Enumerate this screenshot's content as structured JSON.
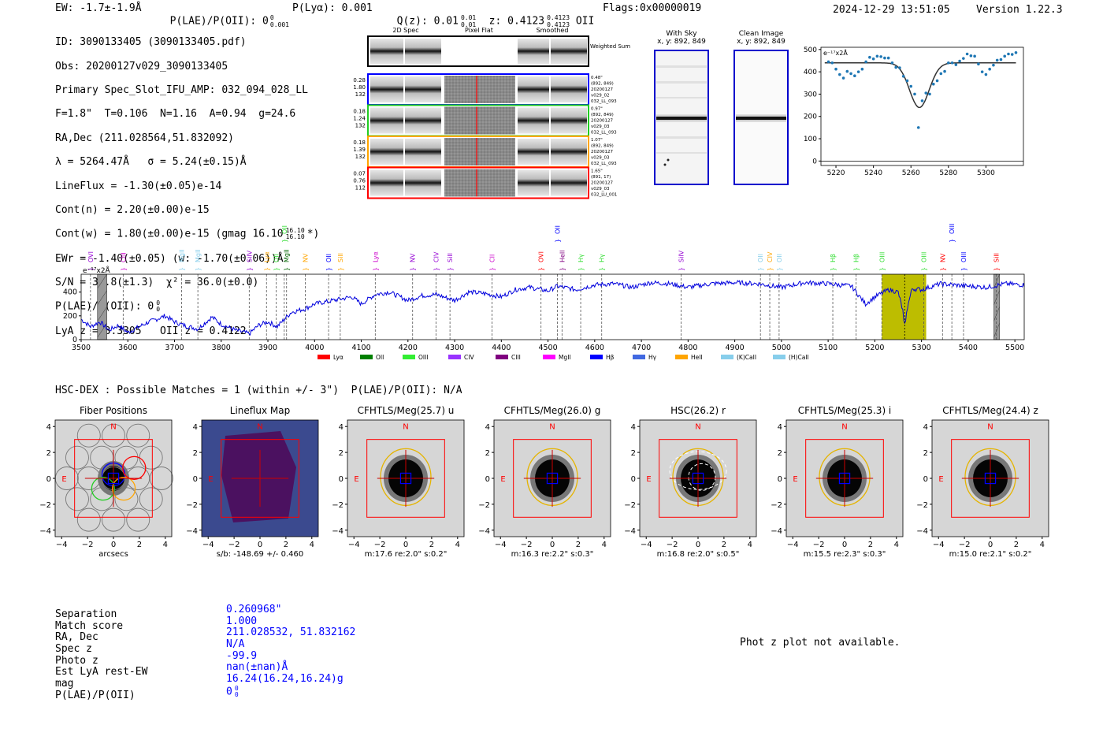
{
  "header": {
    "ew": "EW: -1.7±-1.9Å",
    "plae": "P(LAE)/P(OII): 0",
    "plae_sup": "0",
    "plae_sub": "0.001",
    "plya": "P(Lyα): 0.001",
    "qz": "Q(z): 0.01",
    "qz_sup": "0.01",
    "qz_sub": "0.01",
    "z": "z: 0.4123",
    "z_sup": "0.4123",
    "z_sub": "0.4123",
    "z_line": "OII",
    "flags": "Flags:0x00000019",
    "datetime": "2024-12-29 13:51:05",
    "version": "Version 1.22.3"
  },
  "info": {
    "id": "ID: 3090133405 (3090133405.pdf)",
    "obs": "Obs: 20200127v029_3090133405",
    "slot": "Primary Spec_Slot_IFU_AMP: 032_094_028_LL",
    "fiber": "F=1.8\"  T=0.106  N=1.16  A=0.94  g=24.6",
    "radec": "RA,Dec (211.028564,51.832092)",
    "lambda": "λ = 5264.47Å   σ = 5.24(±0.15)Å",
    "lineflux": "LineFlux = -1.30(±0.05)e-14",
    "contn": "Cont(n) = 2.20(±0.00)e-15",
    "contw": "Cont(w) = 1.80(±0.00)e-15 (gmag 16.10",
    "contw_sup": "16.10",
    "contw_sub": "16.10",
    "contw_end": "*)",
    "ewr": "EWr = -1.40(±0.05) (w: -1.70(±0.06))Å",
    "sn": "S/N = 37.8(±1.3)  χ² = 36.0(±0.0)",
    "plae": "P(LAE)/P(OII): 0",
    "plae_sup": "0",
    "plae_sub": "0",
    "lya_z": "LyA z = 3.3305   OII z = 0.4122"
  },
  "cutouts": {
    "col_2d": "2D Spec",
    "col_flat": "Pixel Flat",
    "col_smooth": "Smoothed",
    "weighted": "Weighted Sum",
    "rows": [
      {
        "left": [
          "0.28",
          "1.80",
          "132"
        ],
        "right": [
          "0.48\"",
          "(892, 849)",
          "20200127",
          "v029_02",
          "032_LL_093"
        ],
        "color": "#0000ff"
      },
      {
        "left": [
          "0.18",
          "1.24",
          "132"
        ],
        "right": [
          "0.97\"",
          "(892, 849)",
          "20200127",
          "v029_03",
          "032_LL_093"
        ],
        "color": "#22cc22"
      },
      {
        "left": [
          "0.18",
          "1.39",
          "132"
        ],
        "right": [
          "1.07\"",
          "(892, 849)",
          "20200127",
          "v029_03",
          "032_LL_093"
        ],
        "color": "#ffa500"
      },
      {
        "left": [
          "0.07",
          "0.76",
          "112"
        ],
        "right": [
          "1.65\"",
          "(891, 17)",
          "20200127",
          "v029_03",
          "032_LU_001"
        ],
        "color": "#ff0000"
      }
    ],
    "with_sky": "With Sky",
    "with_sky_xy": "x, y: 892, 849",
    "clean": "Clean Image",
    "clean_xy": "x, y: 892, 849"
  },
  "fit_chart": {
    "type": "scatter",
    "unit_label": "e⁻¹⁷x2Å",
    "xlim": [
      5212,
      5320
    ],
    "ylim": [
      -20,
      510
    ],
    "xticks": [
      5220,
      5240,
      5260,
      5280,
      5300
    ],
    "yticks": [
      0,
      100,
      200,
      300,
      400,
      500
    ],
    "x": [
      5212,
      5214,
      5216,
      5218,
      5220,
      5222,
      5224,
      5226,
      5228,
      5230,
      5232,
      5234,
      5236,
      5238,
      5240,
      5242,
      5244,
      5246,
      5248,
      5250,
      5252,
      5254,
      5256,
      5258,
      5260,
      5262,
      5264,
      5266,
      5268,
      5270,
      5272,
      5274,
      5276,
      5278,
      5280,
      5282,
      5284,
      5286,
      5288,
      5290,
      5292,
      5294,
      5296,
      5298,
      5300,
      5302,
      5304,
      5306,
      5308,
      5310,
      5312,
      5314,
      5316
    ],
    "y": [
      410,
      435,
      445,
      440,
      412,
      388,
      372,
      402,
      392,
      382,
      400,
      412,
      445,
      465,
      458,
      470,
      468,
      462,
      462,
      440,
      420,
      418,
      380,
      360,
      335,
      300,
      150,
      270,
      305,
      300,
      345,
      360,
      392,
      402,
      440,
      440,
      432,
      448,
      460,
      480,
      472,
      470,
      435,
      400,
      388,
      412,
      430,
      452,
      455,
      470,
      480,
      478,
      486
    ],
    "model": {
      "baseline": 440,
      "center": 5264.5,
      "sigma": 5.24,
      "amplitude": -200
    }
  },
  "spectrum_chart": {
    "type": "line",
    "unit_label": "e⁻¹⁷x2Å",
    "xlim": [
      3500,
      5520
    ],
    "ylim": [
      0,
      550
    ],
    "xticks": [
      3500,
      3600,
      3700,
      3800,
      3900,
      4000,
      4100,
      4200,
      4300,
      4400,
      4500,
      4600,
      4700,
      4800,
      4900,
      5000,
      5100,
      5200,
      5300,
      5400,
      5500
    ],
    "yticks": [
      0,
      200,
      400
    ],
    "highlight": [
      5215,
      5310
    ],
    "shaded": [
      [
        3535,
        3555
      ],
      [
        5455,
        5467
      ]
    ],
    "line_center": 5264,
    "anchors": [
      [
        3500,
        170
      ],
      [
        3520,
        110
      ],
      [
        3540,
        150
      ],
      [
        3560,
        80
      ],
      [
        3580,
        120
      ],
      [
        3600,
        60
      ],
      [
        3640,
        140
      ],
      [
        3680,
        200
      ],
      [
        3700,
        150
      ],
      [
        3720,
        120
      ],
      [
        3750,
        90
      ],
      [
        3780,
        190
      ],
      [
        3800,
        130
      ],
      [
        3830,
        80
      ],
      [
        3860,
        50
      ],
      [
        3880,
        120
      ],
      [
        3900,
        150
      ],
      [
        3920,
        110
      ],
      [
        3950,
        230
      ],
      [
        3980,
        260
      ],
      [
        4000,
        300
      ],
      [
        4040,
        330
      ],
      [
        4080,
        360
      ],
      [
        4100,
        300
      ],
      [
        4130,
        380
      ],
      [
        4160,
        400
      ],
      [
        4200,
        330
      ],
      [
        4230,
        370
      ],
      [
        4260,
        380
      ],
      [
        4300,
        330
      ],
      [
        4330,
        400
      ],
      [
        4360,
        390
      ],
      [
        4400,
        360
      ],
      [
        4430,
        420
      ],
      [
        4460,
        440
      ],
      [
        4500,
        410
      ],
      [
        4520,
        450
      ],
      [
        4560,
        420
      ],
      [
        4600,
        460
      ],
      [
        4640,
        470
      ],
      [
        4680,
        440
      ],
      [
        4720,
        480
      ],
      [
        4760,
        470
      ],
      [
        4800,
        440
      ],
      [
        4850,
        470
      ],
      [
        4900,
        480
      ],
      [
        4950,
        470
      ],
      [
        5000,
        440
      ],
      [
        5050,
        480
      ],
      [
        5100,
        470
      ],
      [
        5150,
        450
      ],
      [
        5180,
        300
      ],
      [
        5200,
        360
      ],
      [
        5230,
        420
      ],
      [
        5250,
        400
      ],
      [
        5264,
        180
      ],
      [
        5280,
        430
      ],
      [
        5300,
        420
      ],
      [
        5340,
        470
      ],
      [
        5400,
        450
      ],
      [
        5440,
        440
      ],
      [
        5480,
        470
      ],
      [
        5520,
        460
      ]
    ],
    "lines": [
      {
        "label": "OVI",
        "x": 3520,
        "color": "#9400d3",
        "brace": true
      },
      {
        "label": "CIII",
        "x": 3590,
        "color": "#cc00cc",
        "brace": true
      },
      {
        "label": "MgII",
        "x": 3715,
        "color": "#87ceeb",
        "brace": true
      },
      {
        "label": "MgII",
        "x": 3750,
        "color": "#87ceeb",
        "brace": true
      },
      {
        "label": "SiIV",
        "x": 3860,
        "color": "#9400d3",
        "brace": true
      },
      {
        "label": "Lyα",
        "x": 3897,
        "color": "#ffa500",
        "brace": true
      },
      {
        "label": "OII",
        "x": 3918,
        "color": "#33dd33",
        "brace": true
      },
      {
        "label": "MgII",
        "x": 3940,
        "color": "#006400",
        "brace": true
      },
      {
        "label": "NV",
        "x": 3980,
        "color": "#ffa500",
        "brace": true
      },
      {
        "label": "OII",
        "x": 3935,
        "color": "#33dd33",
        "brace": true,
        "high": true
      },
      {
        "label": "OII",
        "x": 4030,
        "color": "#0000ff",
        "brace": true
      },
      {
        "label": "SiII",
        "x": 4055,
        "color": "#ffa500",
        "brace": true
      },
      {
        "label": "Lyα",
        "x": 4130,
        "color": "#cc00cc",
        "brace": true
      },
      {
        "label": "NV",
        "x": 4210,
        "color": "#9400d3",
        "brace": true
      },
      {
        "label": "CIV",
        "x": 4260,
        "color": "#9400d3",
        "brace": true
      },
      {
        "label": "SiII",
        "x": 4290,
        "color": "#9400d3",
        "brace": true
      },
      {
        "label": "CII",
        "x": 4380,
        "color": "#cc00cc",
        "brace": true
      },
      {
        "label": "OVI",
        "x": 4485,
        "color": "#ff0000",
        "brace": true
      },
      {
        "label": "HeII",
        "x": 4530,
        "color": "#800080",
        "brace": true
      },
      {
        "label": "OII",
        "x": 4520,
        "color": "#0000ff",
        "brace": true,
        "high": true
      },
      {
        "label": "Hγ",
        "x": 4570,
        "color": "#33dd33",
        "brace": true
      },
      {
        "label": "Hγ",
        "x": 4615,
        "color": "#33dd33",
        "brace": true
      },
      {
        "label": "SiIV",
        "x": 4785,
        "color": "#9400d3",
        "brace": true
      },
      {
        "label": "OII",
        "x": 4955,
        "color": "#87ceeb",
        "brace": true
      },
      {
        "label": "CIV",
        "x": 4975,
        "color": "#ffa500",
        "brace": true
      },
      {
        "label": "OII",
        "x": 4995,
        "color": "#87ceeb",
        "brace": true
      },
      {
        "label": "Hβ",
        "x": 5110,
        "color": "#33dd33",
        "brace": true
      },
      {
        "label": "Hβ",
        "x": 5160,
        "color": "#33dd33",
        "brace": true
      },
      {
        "label": "OIII",
        "x": 5215,
        "color": "#33dd33",
        "brace": true
      },
      {
        "label": "OIII",
        "x": 5305,
        "color": "#33dd33",
        "brace": true
      },
      {
        "label": "NV",
        "x": 5345,
        "color": "#ff0000",
        "brace": true
      },
      {
        "label": "OIII",
        "x": 5365,
        "color": "#0000ff",
        "brace": true,
        "high": true
      },
      {
        "label": "OIII",
        "x": 5390,
        "color": "#0000ff",
        "brace": true
      },
      {
        "label": "SiII",
        "x": 5460,
        "color": "#ff0000",
        "brace": true
      }
    ],
    "legend": [
      {
        "label": "Lyα",
        "color": "#ff0000"
      },
      {
        "label": "OII",
        "color": "#008000"
      },
      {
        "label": "OIII",
        "color": "#33ee33"
      },
      {
        "label": "CIV",
        "color": "#9933ff"
      },
      {
        "label": "CIII",
        "color": "#800080"
      },
      {
        "label": "MgII",
        "color": "#ff00ff"
      },
      {
        "label": "Hβ",
        "color": "#0000ff"
      },
      {
        "label": "Hγ",
        "color": "#4169e1"
      },
      {
        "label": "HeII",
        "color": "#ffa500"
      },
      {
        "label": "(K)CaII",
        "color": "#87ceeb"
      },
      {
        "label": "(H)CaII",
        "color": "#87ceeb"
      }
    ]
  },
  "hsc": {
    "title": "HSC-DEX : Possible Matches = 1 (within +/- 3\")  P(LAE)/P(OII): N/A",
    "xticks": [
      -4,
      -2,
      0,
      2,
      4
    ],
    "yticks": [
      4,
      2,
      0,
      -2,
      -4
    ],
    "panels": [
      {
        "title": "Fiber Positions",
        "footer": "arcsecs",
        "kind": "fiber"
      },
      {
        "title": "Lineflux Map",
        "footer": "s/b: -148.69 +/- 0.460",
        "kind": "lineflux"
      },
      {
        "title": "CFHTLS/Meg(25.7) u",
        "footer": "m:17.6  re:2.0\"  s:0.2\"",
        "kind": "image"
      },
      {
        "title": "CFHTLS/Meg(26.0) g",
        "footer": "m:16.3  re:2.2\"  s:0.3\"",
        "kind": "image"
      },
      {
        "title": "HSC(26.2) r",
        "footer": "m:16.8  re:2.0\"  s:0.5\"",
        "kind": "hsc"
      },
      {
        "title": "CFHTLS/Meg(25.3) i",
        "footer": "m:15.5  re:2.3\"  s:0.3\"",
        "kind": "image"
      },
      {
        "title": "CFHTLS/Meg(24.4) z",
        "footer": "m:15.0  re:2.1\"  s:0.2\"",
        "kind": "image"
      }
    ],
    "north": "N",
    "east": "E"
  },
  "match": {
    "labels": [
      "Separation",
      "Match score",
      "RA, Dec",
      "Spec z",
      "Photo z",
      "Est LyA rest-EW",
      "mag",
      "P(LAE)/P(OII)"
    ],
    "values": [
      "0.260968\"",
      "1.000",
      "211.028532, 51.832162",
      "N/A",
      "-99.9",
      "nan(±nan)Å",
      "16.24(16.24,16.24)g",
      "0"
    ],
    "plae_sup": "0",
    "plae_sub": "0",
    "photz_note": "Phot z plot not available."
  }
}
